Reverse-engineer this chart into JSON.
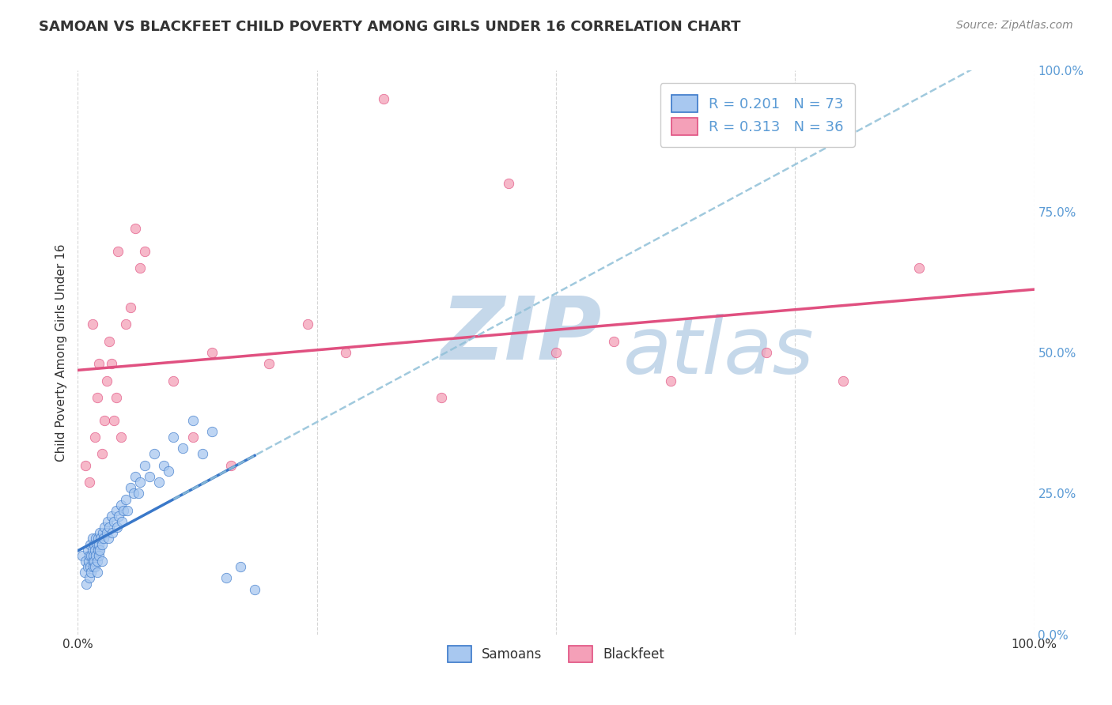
{
  "title": "SAMOAN VS BLACKFEET CHILD POVERTY AMONG GIRLS UNDER 16 CORRELATION CHART",
  "source": "Source: ZipAtlas.com",
  "ylabel": "Child Poverty Among Girls Under 16",
  "legend_samoans_label": "R = 0.201   N = 73",
  "legend_blackfeet_label": "R = 0.313   N = 36",
  "legend_samoans_text": "Samoans",
  "legend_blackfeet_text": "Blackfeet",
  "samoans_color": "#A8C8F0",
  "blackfeet_color": "#F4A0B8",
  "regression_samoans_color": "#3A78C9",
  "regression_blackfeet_color": "#E05080",
  "dashed_line_color": "#90C0D8",
  "watermark_zip_color": "#C5D8EA",
  "watermark_atlas_color": "#C5D8EA",
  "title_color": "#333333",
  "right_axis_color": "#5B9BD5",
  "background_color": "#FFFFFF",
  "grid_color": "#CCCCCC",
  "samoans_x": [
    0.005,
    0.007,
    0.008,
    0.009,
    0.01,
    0.01,
    0.011,
    0.012,
    0.012,
    0.013,
    0.013,
    0.014,
    0.014,
    0.015,
    0.015,
    0.015,
    0.016,
    0.016,
    0.017,
    0.017,
    0.018,
    0.018,
    0.019,
    0.019,
    0.02,
    0.02,
    0.02,
    0.021,
    0.021,
    0.022,
    0.022,
    0.023,
    0.023,
    0.024,
    0.025,
    0.025,
    0.026,
    0.027,
    0.028,
    0.03,
    0.031,
    0.032,
    0.033,
    0.035,
    0.036,
    0.038,
    0.04,
    0.041,
    0.043,
    0.045,
    0.046,
    0.048,
    0.05,
    0.052,
    0.055,
    0.058,
    0.06,
    0.063,
    0.065,
    0.07,
    0.075,
    0.08,
    0.085,
    0.09,
    0.095,
    0.1,
    0.11,
    0.12,
    0.13,
    0.14,
    0.155,
    0.17,
    0.185
  ],
  "samoans_y": [
    0.14,
    0.11,
    0.13,
    0.09,
    0.15,
    0.12,
    0.13,
    0.14,
    0.1,
    0.16,
    0.12,
    0.14,
    0.11,
    0.15,
    0.13,
    0.17,
    0.14,
    0.12,
    0.16,
    0.13,
    0.15,
    0.12,
    0.17,
    0.14,
    0.16,
    0.13,
    0.11,
    0.17,
    0.15,
    0.16,
    0.14,
    0.18,
    0.15,
    0.17,
    0.16,
    0.13,
    0.18,
    0.17,
    0.19,
    0.18,
    0.2,
    0.17,
    0.19,
    0.21,
    0.18,
    0.2,
    0.22,
    0.19,
    0.21,
    0.23,
    0.2,
    0.22,
    0.24,
    0.22,
    0.26,
    0.25,
    0.28,
    0.25,
    0.27,
    0.3,
    0.28,
    0.32,
    0.27,
    0.3,
    0.29,
    0.35,
    0.33,
    0.38,
    0.32,
    0.36,
    0.1,
    0.12,
    0.08
  ],
  "blackfeet_x": [
    0.008,
    0.012,
    0.015,
    0.018,
    0.02,
    0.022,
    0.025,
    0.028,
    0.03,
    0.033,
    0.035,
    0.038,
    0.04,
    0.042,
    0.045,
    0.05,
    0.055,
    0.06,
    0.065,
    0.07,
    0.1,
    0.12,
    0.14,
    0.16,
    0.2,
    0.24,
    0.28,
    0.32,
    0.38,
    0.45,
    0.5,
    0.56,
    0.62,
    0.72,
    0.8,
    0.88
  ],
  "blackfeet_y": [
    0.3,
    0.27,
    0.55,
    0.35,
    0.42,
    0.48,
    0.32,
    0.38,
    0.45,
    0.52,
    0.48,
    0.38,
    0.42,
    0.68,
    0.35,
    0.55,
    0.58,
    0.72,
    0.65,
    0.68,
    0.45,
    0.35,
    0.5,
    0.3,
    0.48,
    0.55,
    0.5,
    0.95,
    0.42,
    0.8,
    0.5,
    0.52,
    0.45,
    0.5,
    0.45,
    0.65
  ],
  "right_yticks": [
    0.0,
    0.25,
    0.5,
    0.75,
    1.0
  ],
  "right_ytick_labels": [
    "0.0%",
    "25.0%",
    "50.0%",
    "75.0%",
    "100.0%"
  ],
  "ylim": [
    0.0,
    1.0
  ],
  "xlim": [
    0.0,
    1.0
  ],
  "samoans_line_xrange": [
    0.0,
    0.185
  ],
  "dashed_line_xrange": [
    0.1,
    1.0
  ]
}
